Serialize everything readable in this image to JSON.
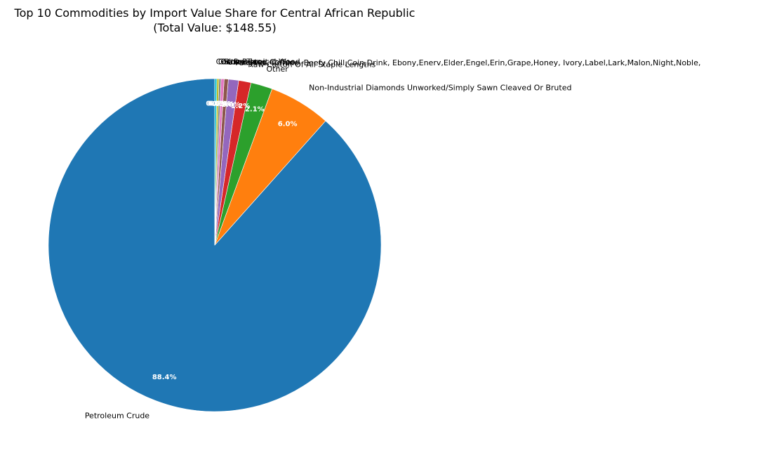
{
  "chart_data": {
    "type": "pie",
    "title": "Top 10 Commodities by Import Value Share for Central African Republic",
    "subtitle": "(Total Value: $148.55)",
    "slices": [
      {
        "label": "Petroleum Crude",
        "value": 88.4,
        "pct_label": "88.4%",
        "color": "#1f77b4"
      },
      {
        "label": "Non-Industrial Diamonds Unworked/Simply Sawn Cleaved Or Bruted",
        "value": 6.0,
        "pct_label": "6.0%",
        "color": "#ff7f0e"
      },
      {
        "label": "Other",
        "value": 2.1,
        "pct_label": "2.1%",
        "color": "#2ca02c"
      },
      {
        "label": "Raw Cotton Of All Staple Lengths",
        "value": 1.2,
        "pct_label": "1.2%",
        "color": "#d62728"
      },
      {
        "label": "Fairylike, Canine, Beefy,Chill,Coin,Drink, Ebony,Enerv,Elder,Engel,Erin,Grape,Honey, Ivory,Label,Lark,Malon,Night,Noble,",
        "value": 1.0,
        "pct_label": "1.0%",
        "color": "#9467bd"
      },
      {
        "label": "Unroasted Coffee",
        "value": 0.4,
        "pct_label": "0.4%",
        "color": "#8c564b"
      },
      {
        "label": "Sawn Tropical Wood",
        "value": 0.3,
        "pct_label": "0.3%",
        "color": "#e377c2"
      },
      {
        "label": "Oil Seeds",
        "value": 0.2,
        "pct_label": "0.2%",
        "color": "#7f7f7f"
      },
      {
        "label": "Gold",
        "value": 0.2,
        "pct_label": "0.2%",
        "color": "#bcbd22"
      },
      {
        "label": "Cocoa Beans",
        "value": 0.2,
        "pct_label": "0.2%",
        "color": "#17becf"
      }
    ],
    "start_angle_deg": 90,
    "direction": "counterclockwise"
  }
}
